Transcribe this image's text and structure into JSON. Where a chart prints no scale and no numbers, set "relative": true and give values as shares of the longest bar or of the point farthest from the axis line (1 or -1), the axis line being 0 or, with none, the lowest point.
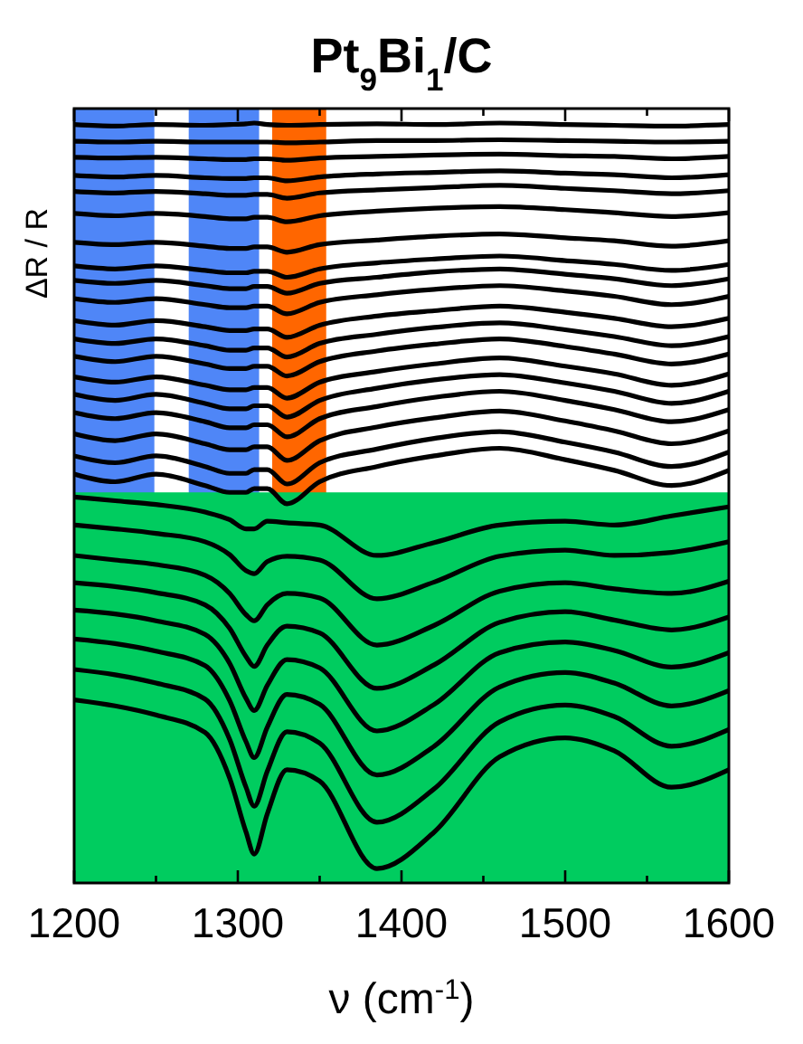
{
  "chart_data": {
    "type": "line",
    "title": "Pt$_{9}$Bi$_{1}$/C",
    "xlabel": "ν (cm$^{-1}$)",
    "ylabel": "ΔR / R",
    "relative": true,
    "x": [
      1200,
      1225,
      1250,
      1280,
      1295,
      1305,
      1310,
      1318,
      1330,
      1350,
      1385,
      1420,
      1460,
      1500,
      1530,
      1565,
      1600
    ],
    "xlim": [
      1200,
      1600
    ],
    "xticks": [
      1200,
      {
        "value": 1250,
        "label": null
      },
      1300,
      {
        "value": 1350,
        "label": null
      },
      1400,
      {
        "value": 1450,
        "label": null
      },
      1500,
      {
        "value": 1550,
        "label": null
      },
      1600
    ],
    "bands": [
      {
        "axis": "x",
        "from": 1200,
        "to": 1249,
        "color": "#4f86f7"
      },
      {
        "axis": "x",
        "from": 1270,
        "to": 1313,
        "color": "#4f86f7"
      },
      {
        "axis": "x",
        "from": 1321,
        "to": 1354,
        "color": "#ff6600"
      },
      {
        "axis": "y",
        "from": 0,
        "to": 0.514,
        "color": "#00cc5f"
      }
    ],
    "series": [
      {
        "color": "#000000",
        "values": [
          0.998,
          0.996,
          0.998,
          0.997,
          0.998,
          0.999,
          1.0,
          0.998,
          0.997,
          0.998,
          0.999,
          0.998,
          1.0,
          0.998,
          0.997,
          0.996,
          0.998
        ]
      },
      {
        "color": "#000000",
        "values": [
          0.976,
          0.975,
          0.976,
          0.975,
          0.975,
          0.975,
          0.975,
          0.975,
          0.974,
          0.975,
          0.977,
          0.977,
          0.978,
          0.977,
          0.976,
          0.975,
          0.976
        ]
      },
      {
        "color": "#000000",
        "values": [
          0.955,
          0.954,
          0.955,
          0.953,
          0.952,
          0.952,
          0.953,
          0.953,
          0.951,
          0.954,
          0.956,
          0.958,
          0.959,
          0.957,
          0.956,
          0.953,
          0.956
        ]
      },
      {
        "color": "#000000",
        "values": [
          0.931,
          0.929,
          0.931,
          0.928,
          0.927,
          0.927,
          0.928,
          0.928,
          0.924,
          0.929,
          0.933,
          0.935,
          0.937,
          0.934,
          0.932,
          0.928,
          0.932
        ]
      },
      {
        "color": "#000000",
        "values": [
          0.91,
          0.908,
          0.91,
          0.907,
          0.905,
          0.905,
          0.906,
          0.906,
          0.901,
          0.908,
          0.912,
          0.915,
          0.918,
          0.914,
          0.911,
          0.907,
          0.911
        ]
      },
      {
        "color": "#000000",
        "values": [
          0.881,
          0.878,
          0.881,
          0.877,
          0.874,
          0.874,
          0.876,
          0.876,
          0.87,
          0.878,
          0.884,
          0.888,
          0.89,
          0.886,
          0.882,
          0.877,
          0.882
        ]
      },
      {
        "color": "#000000",
        "values": [
          0.843,
          0.84,
          0.843,
          0.838,
          0.835,
          0.835,
          0.837,
          0.837,
          0.83,
          0.84,
          0.846,
          0.851,
          0.854,
          0.849,
          0.845,
          0.838,
          0.845
        ]
      },
      {
        "color": "#000000",
        "values": [
          0.812,
          0.808,
          0.812,
          0.806,
          0.803,
          0.803,
          0.805,
          0.805,
          0.797,
          0.808,
          0.816,
          0.821,
          0.825,
          0.819,
          0.814,
          0.806,
          0.814
        ]
      },
      {
        "color": "#000000",
        "values": [
          0.793,
          0.789,
          0.793,
          0.786,
          0.782,
          0.782,
          0.785,
          0.785,
          0.776,
          0.789,
          0.797,
          0.804,
          0.808,
          0.801,
          0.795,
          0.786,
          0.795
        ]
      },
      {
        "color": "#000000",
        "values": [
          0.769,
          0.764,
          0.769,
          0.761,
          0.757,
          0.757,
          0.759,
          0.759,
          0.749,
          0.764,
          0.774,
          0.781,
          0.786,
          0.779,
          0.772,
          0.761,
          0.772
        ]
      },
      {
        "color": "#000000",
        "values": [
          0.74,
          0.734,
          0.74,
          0.732,
          0.727,
          0.727,
          0.729,
          0.729,
          0.718,
          0.734,
          0.746,
          0.753,
          0.759,
          0.751,
          0.743,
          0.732,
          0.743
        ]
      },
      {
        "color": "#000000",
        "values": [
          0.716,
          0.71,
          0.716,
          0.707,
          0.701,
          0.701,
          0.704,
          0.704,
          0.692,
          0.71,
          0.722,
          0.731,
          0.737,
          0.728,
          0.719,
          0.707,
          0.719
        ]
      },
      {
        "color": "#000000",
        "values": [
          0.693,
          0.686,
          0.693,
          0.683,
          0.677,
          0.677,
          0.68,
          0.68,
          0.667,
          0.686,
          0.7,
          0.709,
          0.716,
          0.706,
          0.696,
          0.683,
          0.696
        ]
      },
      {
        "color": "#000000",
        "values": [
          0.666,
          0.659,
          0.666,
          0.655,
          0.649,
          0.649,
          0.652,
          0.652,
          0.638,
          0.659,
          0.673,
          0.683,
          0.691,
          0.68,
          0.67,
          0.655,
          0.67
        ]
      },
      {
        "color": "#000000",
        "values": [
          0.643,
          0.635,
          0.643,
          0.631,
          0.624,
          0.624,
          0.628,
          0.628,
          0.613,
          0.635,
          0.651,
          0.662,
          0.669,
          0.658,
          0.647,
          0.631,
          0.647
        ]
      },
      {
        "color": "#000000",
        "values": [
          0.619,
          0.611,
          0.619,
          0.607,
          0.599,
          0.599,
          0.603,
          0.603,
          0.587,
          0.611,
          0.627,
          0.639,
          0.647,
          0.635,
          0.623,
          0.607,
          0.623
        ]
      },
      {
        "color": "#000000",
        "values": [
          0.591,
          0.582,
          0.591,
          0.578,
          0.57,
          0.57,
          0.574,
          0.574,
          0.556,
          0.582,
          0.6,
          0.612,
          0.621,
          0.608,
          0.595,
          0.578,
          0.595
        ]
      },
      {
        "color": "#000000",
        "values": [
          0.562,
          0.553,
          0.562,
          0.548,
          0.539,
          0.539,
          0.544,
          0.544,
          0.525,
          0.553,
          0.571,
          0.585,
          0.594,
          0.58,
          0.567,
          0.548,
          0.567
        ]
      },
      {
        "color": "#000000",
        "values": [
          0.538,
          0.528,
          0.538,
          0.523,
          0.514,
          0.514,
          0.519,
          0.519,
          0.499,
          0.528,
          0.548,
          0.562,
          0.572,
          0.557,
          0.543,
          0.523,
          0.543
        ]
      },
      {
        "color": "#000000",
        "values": [
          0.508,
          0.503,
          0.498,
          0.488,
          0.478,
          0.466,
          0.466,
          0.476,
          0.474,
          0.471,
          0.431,
          0.448,
          0.471,
          0.476,
          0.471,
          0.483,
          0.495
        ]
      },
      {
        "color": "#000000",
        "values": [
          0.471,
          0.466,
          0.46,
          0.449,
          0.432,
          0.411,
          0.407,
          0.423,
          0.43,
          0.425,
          0.374,
          0.396,
          0.43,
          0.438,
          0.431,
          0.435,
          0.449
        ]
      },
      {
        "color": "#000000",
        "values": [
          0.431,
          0.425,
          0.419,
          0.405,
          0.381,
          0.353,
          0.345,
          0.366,
          0.381,
          0.375,
          0.313,
          0.339,
          0.384,
          0.395,
          0.387,
          0.381,
          0.397
        ]
      },
      {
        "color": "#000000",
        "values": [
          0.395,
          0.39,
          0.382,
          0.366,
          0.335,
          0.298,
          0.285,
          0.313,
          0.338,
          0.329,
          0.256,
          0.287,
          0.343,
          0.357,
          0.346,
          0.333,
          0.35
        ]
      },
      {
        "color": "#000000",
        "values": [
          0.359,
          0.354,
          0.345,
          0.327,
          0.289,
          0.243,
          0.227,
          0.26,
          0.294,
          0.283,
          0.2,
          0.235,
          0.303,
          0.317,
          0.306,
          0.284,
          0.303
        ]
      },
      {
        "color": "#000000",
        "values": [
          0.321,
          0.315,
          0.305,
          0.286,
          0.24,
          0.186,
          0.165,
          0.205,
          0.248,
          0.235,
          0.142,
          0.18,
          0.258,
          0.277,
          0.263,
          0.233,
          0.253
        ]
      },
      {
        "color": "#000000",
        "values": [
          0.281,
          0.274,
          0.263,
          0.242,
          0.189,
          0.126,
          0.101,
          0.147,
          0.199,
          0.184,
          0.08,
          0.124,
          0.212,
          0.234,
          0.219,
          0.18,
          0.202
        ]
      },
      {
        "color": "#000000",
        "values": [
          0.241,
          0.233,
          0.221,
          0.198,
          0.138,
          0.067,
          0.038,
          0.091,
          0.149,
          0.134,
          0.019,
          0.067,
          0.166,
          0.191,
          0.174,
          0.126,
          0.149
        ]
      }
    ]
  }
}
